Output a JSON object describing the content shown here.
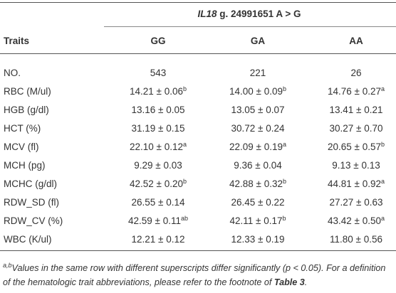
{
  "table": {
    "group_header": {
      "gene": "IL18",
      "variant": " g. 24991651 A > G"
    },
    "columns": [
      "Traits",
      "GG",
      "GA",
      "AA"
    ],
    "rows": [
      {
        "trait": "NO.",
        "cells": [
          {
            "text": "543"
          },
          {
            "text": "221"
          },
          {
            "text": "26"
          }
        ]
      },
      {
        "trait": "RBC (M/ul)",
        "cells": [
          {
            "text": "14.21 ± 0.06",
            "sup": "b"
          },
          {
            "text": "14.00 ± 0.09",
            "sup": "b"
          },
          {
            "text": "14.76 ± 0.27",
            "sup": "a"
          }
        ]
      },
      {
        "trait": "HGB (g/dl)",
        "cells": [
          {
            "text": "13.16 ± 0.05"
          },
          {
            "text": "13.05 ± 0.07"
          },
          {
            "text": "13.41 ± 0.21"
          }
        ]
      },
      {
        "trait": "HCT (%)",
        "cells": [
          {
            "text": "31.19 ± 0.15"
          },
          {
            "text": "30.72 ± 0.24"
          },
          {
            "text": "30.27 ± 0.70"
          }
        ]
      },
      {
        "trait": "MCV (fl)",
        "cells": [
          {
            "text": "22.10 ± 0.12",
            "sup": "a"
          },
          {
            "text": "22.09 ± 0.19",
            "sup": "a"
          },
          {
            "text": "20.65 ± 0.57",
            "sup": "b"
          }
        ]
      },
      {
        "trait": "MCH (pg)",
        "cells": [
          {
            "text": "9.29 ± 0.03"
          },
          {
            "text": "9.36 ± 0.04"
          },
          {
            "text": "9.13 ± 0.13"
          }
        ]
      },
      {
        "trait": "MCHC (g/dl)",
        "cells": [
          {
            "text": "42.52 ± 0.20",
            "sup": "b"
          },
          {
            "text": "42.88 ± 0.32",
            "sup": "b"
          },
          {
            "text": "44.81 ± 0.92",
            "sup": "a"
          }
        ]
      },
      {
        "trait": "RDW_SD (fl)",
        "cells": [
          {
            "text": "26.55 ± 0.14"
          },
          {
            "text": "26.45 ± 0.22"
          },
          {
            "text": "27.27 ± 0.63"
          }
        ]
      },
      {
        "trait": "RDW_CV (%)",
        "cells": [
          {
            "text": "42.59 ± 0.11",
            "sup": "ab"
          },
          {
            "text": "42.11 ± 0.17",
            "sup": "b"
          },
          {
            "text": "43.42 ± 0.50",
            "sup": "a"
          }
        ]
      },
      {
        "trait": "WBC (K/ul)",
        "cells": [
          {
            "text": "12.21 ± 0.12"
          },
          {
            "text": "12.33 ± 0.19"
          },
          {
            "text": "11.80 ± 0.56"
          }
        ]
      }
    ],
    "footnote": {
      "sup": "a,b",
      "text": "Values in the same row with different superscripts differ significantly (p < 0.05). For a definition of the hematologic trait abbreviations, please refer to the footnote of ",
      "ref": "Table 3",
      "end": "."
    }
  }
}
